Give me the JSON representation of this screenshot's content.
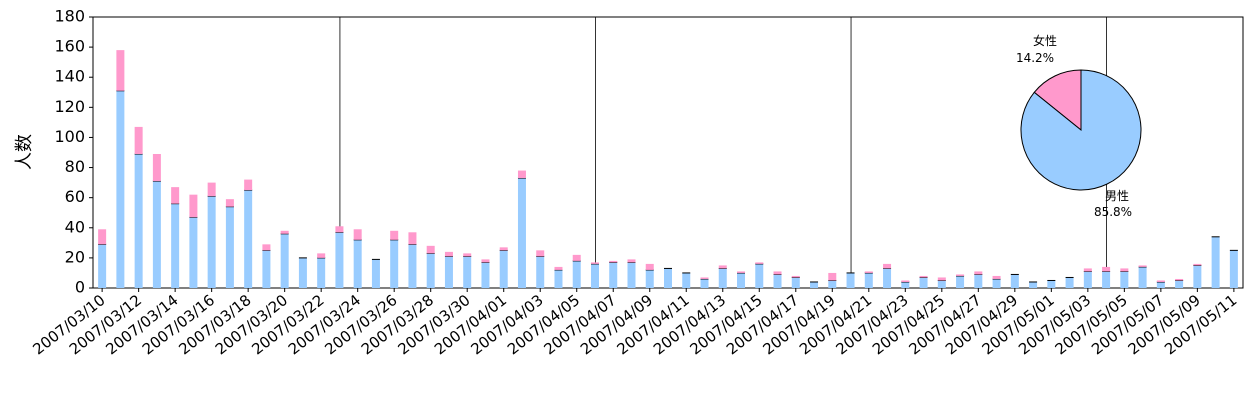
{
  "chart_data": [
    {
      "type": "stacked-bar",
      "y_label": "人数",
      "categories": [
        "2007/03/10",
        null,
        "2007/03/12",
        null,
        "2007/03/14",
        null,
        "2007/03/16",
        null,
        "2007/03/18",
        null,
        "2007/03/20",
        null,
        "2007/03/22",
        null,
        "2007/03/24",
        null,
        "2007/03/26",
        null,
        "2007/03/28",
        null,
        "2007/03/30",
        null,
        "2007/04/01",
        null,
        "2007/04/03",
        null,
        "2007/04/05",
        null,
        "2007/04/07",
        null,
        "2007/04/09",
        null,
        "2007/04/11",
        null,
        "2007/04/13",
        null,
        "2007/04/15",
        null,
        "2007/04/17",
        null,
        "2007/04/19",
        null,
        "2007/04/21",
        null,
        "2007/04/23",
        null,
        "2007/04/25",
        null,
        "2007/04/27",
        null,
        "2007/04/29",
        null,
        "2007/05/01",
        null,
        "2007/05/03",
        null,
        "2007/05/05",
        null,
        "2007/05/07",
        null,
        "2007/05/09",
        null,
        "2007/05/11"
      ],
      "series": [
        {
          "name": "男性",
          "color": "#99ccff",
          "values": [
            29,
            131,
            89,
            71,
            56,
            47,
            61,
            54,
            65,
            25,
            36,
            20,
            20,
            37,
            32,
            19,
            32,
            29,
            23,
            21,
            21,
            17,
            25,
            73,
            21,
            12,
            18,
            16,
            17,
            17,
            12,
            13,
            10,
            6,
            13,
            10,
            16,
            9,
            7,
            4,
            5,
            10,
            10,
            13,
            4,
            7,
            5,
            8,
            9,
            6,
            9,
            4,
            5,
            7,
            11,
            11,
            11,
            14,
            4,
            5,
            15,
            34,
            25
          ]
        },
        {
          "name": "女性",
          "color": "#ff99cc",
          "values": [
            10,
            27,
            18,
            18,
            11,
            15,
            9,
            5,
            7,
            4,
            2,
            0,
            3,
            4,
            7,
            0,
            6,
            8,
            5,
            3,
            2,
            2,
            2,
            5,
            4,
            2,
            4,
            1,
            1,
            2,
            4,
            0,
            0,
            1,
            2,
            1,
            1,
            2,
            1,
            0,
            5,
            0,
            1,
            3,
            1,
            1,
            2,
            1,
            2,
            2,
            0,
            0,
            0,
            0,
            2,
            3,
            2,
            1,
            1,
            1,
            1,
            0,
            0
          ]
        }
      ],
      "ylim": [
        0,
        180
      ],
      "yticks": [
        0,
        20,
        40,
        60,
        80,
        100,
        120,
        140,
        160,
        180
      ]
    },
    {
      "type": "pie",
      "labels": [
        "女性",
        "男性"
      ],
      "values": [
        14.2,
        85.8
      ],
      "value_labels": [
        "14.2%",
        "85.8%"
      ],
      "colors": [
        "#ff99cc",
        "#99ccff"
      ]
    }
  ]
}
